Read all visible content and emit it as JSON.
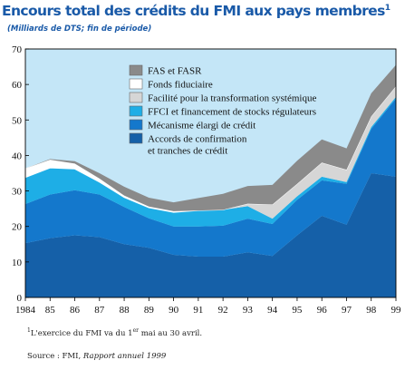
{
  "title": "Encours total des crédits du FMI aux pays membres",
  "title_sup": "1",
  "subtitle": "(Milliards de DTS; fin de période)",
  "footnote": {
    "marker": "1",
    "text_before": "L'exercice du FMI va du 1",
    "sup": "er",
    "text_after": " mai au 30 avril."
  },
  "source": {
    "prefix": "Source : FMI, ",
    "publication": "Rapport annuel 1999"
  },
  "colors": {
    "background": "#c4e6f7",
    "FAS_FASR": "#8a8a8a",
    "fonds_fiduciaire": "#ffffff",
    "facilite_transformation": "#d6d6d6",
    "FFCI": "#1eaee6",
    "mecanisme_elargi": "#1478cc",
    "accords_confirmation": "#1560a8"
  },
  "chart_data": {
    "type": "area",
    "stacked": true,
    "x": [
      1984,
      1985,
      1986,
      1987,
      1988,
      1989,
      1990,
      1991,
      1992,
      1993,
      1994,
      1995,
      1996,
      1997,
      1998,
      1999
    ],
    "x_tick_labels": [
      "1984",
      "85",
      "86",
      "87",
      "88",
      "89",
      "90",
      "91",
      "92",
      "93",
      "94",
      "95",
      "96",
      "97",
      "98",
      "99"
    ],
    "ylim": [
      0,
      70
    ],
    "y_ticks": [
      0,
      10,
      20,
      30,
      40,
      50,
      60,
      70
    ],
    "grid": false,
    "legend_position": "top-center",
    "legend": [
      {
        "name": "FAS et FASR",
        "color_key": "FAS_FASR"
      },
      {
        "name": "Fonds fiduciaire",
        "color_key": "fonds_fiduciaire"
      },
      {
        "name": "Facilité pour la transformation systémique",
        "color_key": "facilite_transformation"
      },
      {
        "name": "FFCI et financement de stocks régulateurs",
        "color_key": "FFCI"
      },
      {
        "name": "Mécanisme élargi de crédit",
        "color_key": "mecanisme_elargi"
      },
      {
        "name": "Accords de confirmation",
        "name_line2": "et tranches de crédit",
        "color_key": "accords_confirmation"
      }
    ],
    "series": [
      {
        "name": "Accords de confirmation et tranches de crédit",
        "color_key": "accords_confirmation",
        "values": [
          15.3,
          16.7,
          17.5,
          17.0,
          15.0,
          14.0,
          12.0,
          11.5,
          11.5,
          12.7,
          11.7,
          17.5,
          23.0,
          20.5,
          35.0,
          34.0
        ]
      },
      {
        "name": "Mécanisme élargi de crédit",
        "color_key": "mecanisme_elargi",
        "values": [
          11.0,
          12.3,
          12.7,
          12.0,
          10.5,
          8.3,
          8.0,
          8.5,
          8.7,
          9.5,
          9.0,
          10.0,
          10.0,
          11.5,
          12.5,
          22.0
        ]
      },
      {
        "name": "FFCI et financement de stocks régulateurs",
        "color_key": "FFCI",
        "values": [
          7.5,
          7.5,
          6.0,
          3.5,
          2.7,
          3.0,
          4.0,
          4.5,
          4.5,
          3.5,
          1.5,
          1.0,
          1.0,
          0.5,
          0.5,
          0.5
        ]
      },
      {
        "name": "Facilité pour la transformation systémique",
        "color_key": "facilite_transformation",
        "values": [
          0,
          0,
          0,
          0,
          0,
          0,
          0,
          0,
          0,
          0.7,
          4.0,
          3.5,
          4.0,
          3.5,
          3.0,
          3.0
        ]
      },
      {
        "name": "Fonds fiduciaire",
        "color_key": "fonds_fiduciaire",
        "values": [
          2.5,
          2.3,
          1.5,
          1.0,
          0.5,
          0.3,
          0.3,
          0,
          0,
          0,
          0,
          0,
          0,
          0,
          0,
          0
        ]
      },
      {
        "name": "FAS et FASR",
        "color_key": "FAS_FASR",
        "values": [
          0,
          0.2,
          0.7,
          1.5,
          2.5,
          2.5,
          2.5,
          3.5,
          4.5,
          5.0,
          5.5,
          6.5,
          6.5,
          6.0,
          6.5,
          6.0
        ]
      }
    ]
  }
}
